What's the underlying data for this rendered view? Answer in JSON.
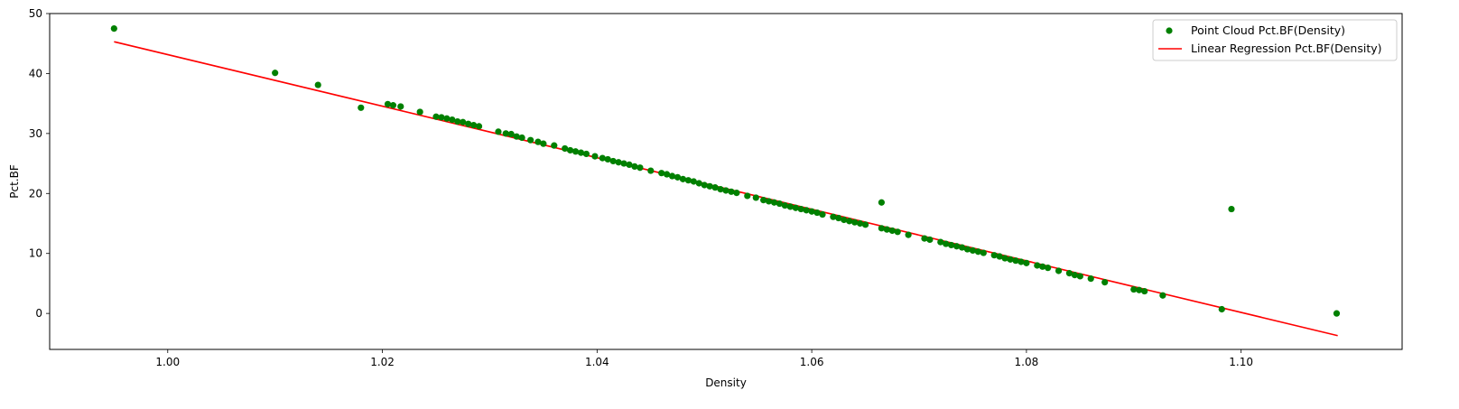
{
  "chart_data": {
    "type": "scatter",
    "xlabel": "Density",
    "ylabel": "Pct.BF",
    "xlim": [
      0.989,
      1.115
    ],
    "ylim": [
      -6,
      50
    ],
    "xticks": [
      "1.00",
      "1.02",
      "1.04",
      "1.06",
      "1.08",
      "1.10"
    ],
    "yticks": [
      "0",
      "10",
      "20",
      "30",
      "40",
      "50"
    ],
    "grid": false,
    "legend_position": "top-right",
    "series": [
      {
        "name": "Point Cloud Pct.BF(Density)",
        "kind": "scatter",
        "color": "#008000",
        "points": [
          [
            0.995,
            47.5
          ],
          [
            1.01,
            40.1
          ],
          [
            1.014,
            38.1
          ],
          [
            1.018,
            34.3
          ],
          [
            1.0205,
            34.9
          ],
          [
            1.021,
            34.7
          ],
          [
            1.0217,
            34.5
          ],
          [
            1.0235,
            33.6
          ],
          [
            1.025,
            32.8
          ],
          [
            1.0255,
            32.7
          ],
          [
            1.026,
            32.5
          ],
          [
            1.0265,
            32.3
          ],
          [
            1.027,
            32.0
          ],
          [
            1.0275,
            31.9
          ],
          [
            1.028,
            31.6
          ],
          [
            1.0285,
            31.4
          ],
          [
            1.029,
            31.2
          ],
          [
            1.0308,
            30.3
          ],
          [
            1.0315,
            30.0
          ],
          [
            1.032,
            29.9
          ],
          [
            1.0325,
            29.5
          ],
          [
            1.033,
            29.3
          ],
          [
            1.0338,
            28.9
          ],
          [
            1.0345,
            28.6
          ],
          [
            1.035,
            28.3
          ],
          [
            1.036,
            28.0
          ],
          [
            1.037,
            27.5
          ],
          [
            1.0375,
            27.2
          ],
          [
            1.038,
            27.0
          ],
          [
            1.0385,
            26.8
          ],
          [
            1.039,
            26.6
          ],
          [
            1.0398,
            26.2
          ],
          [
            1.0405,
            25.9
          ],
          [
            1.041,
            25.7
          ],
          [
            1.0415,
            25.4
          ],
          [
            1.042,
            25.2
          ],
          [
            1.0425,
            25.0
          ],
          [
            1.043,
            24.8
          ],
          [
            1.0435,
            24.5
          ],
          [
            1.044,
            24.3
          ],
          [
            1.045,
            23.8
          ],
          [
            1.046,
            23.4
          ],
          [
            1.0465,
            23.2
          ],
          [
            1.047,
            22.9
          ],
          [
            1.0475,
            22.7
          ],
          [
            1.048,
            22.4
          ],
          [
            1.0485,
            22.2
          ],
          [
            1.049,
            22.0
          ],
          [
            1.0495,
            21.7
          ],
          [
            1.05,
            21.4
          ],
          [
            1.0505,
            21.2
          ],
          [
            1.051,
            21.0
          ],
          [
            1.0515,
            20.7
          ],
          [
            1.052,
            20.5
          ],
          [
            1.0525,
            20.3
          ],
          [
            1.053,
            20.1
          ],
          [
            1.054,
            19.6
          ],
          [
            1.0548,
            19.3
          ],
          [
            1.0555,
            18.9
          ],
          [
            1.056,
            18.7
          ],
          [
            1.0565,
            18.5
          ],
          [
            1.057,
            18.3
          ],
          [
            1.0575,
            18.0
          ],
          [
            1.058,
            17.8
          ],
          [
            1.0585,
            17.6
          ],
          [
            1.059,
            17.4
          ],
          [
            1.0595,
            17.2
          ],
          [
            1.06,
            17.0
          ],
          [
            1.0605,
            16.8
          ],
          [
            1.061,
            16.5
          ],
          [
            1.062,
            16.1
          ],
          [
            1.0625,
            15.9
          ],
          [
            1.063,
            15.6
          ],
          [
            1.0635,
            15.4
          ],
          [
            1.064,
            15.2
          ],
          [
            1.0645,
            15.0
          ],
          [
            1.065,
            14.8
          ],
          [
            1.0665,
            18.5
          ],
          [
            1.0665,
            14.2
          ],
          [
            1.067,
            14.0
          ],
          [
            1.0675,
            13.8
          ],
          [
            1.068,
            13.6
          ],
          [
            1.069,
            13.1
          ],
          [
            1.0705,
            12.5
          ],
          [
            1.071,
            12.3
          ],
          [
            1.072,
            11.9
          ],
          [
            1.0725,
            11.6
          ],
          [
            1.073,
            11.4
          ],
          [
            1.0735,
            11.2
          ],
          [
            1.074,
            11.0
          ],
          [
            1.0745,
            10.7
          ],
          [
            1.075,
            10.5
          ],
          [
            1.0755,
            10.3
          ],
          [
            1.076,
            10.1
          ],
          [
            1.077,
            9.7
          ],
          [
            1.0775,
            9.5
          ],
          [
            1.078,
            9.2
          ],
          [
            1.0785,
            9.0
          ],
          [
            1.079,
            8.8
          ],
          [
            1.0795,
            8.6
          ],
          [
            1.08,
            8.4
          ],
          [
            1.081,
            8.0
          ],
          [
            1.0815,
            7.8
          ],
          [
            1.082,
            7.6
          ],
          [
            1.083,
            7.1
          ],
          [
            1.084,
            6.7
          ],
          [
            1.0845,
            6.4
          ],
          [
            1.085,
            6.2
          ],
          [
            1.086,
            5.8
          ],
          [
            1.0873,
            5.2
          ],
          [
            1.09,
            4.0
          ],
          [
            1.0905,
            3.9
          ],
          [
            1.091,
            3.7
          ],
          [
            1.0927,
            3.0
          ],
          [
            1.0982,
            0.7
          ],
          [
            1.0991,
            17.4
          ],
          [
            1.1089,
            0.0
          ]
        ]
      },
      {
        "name": "Linear Regression Pct.BF(Density)",
        "kind": "line",
        "color": "#ff0000",
        "points": [
          [
            0.995,
            45.3
          ],
          [
            1.109,
            -3.7
          ]
        ]
      }
    ]
  }
}
